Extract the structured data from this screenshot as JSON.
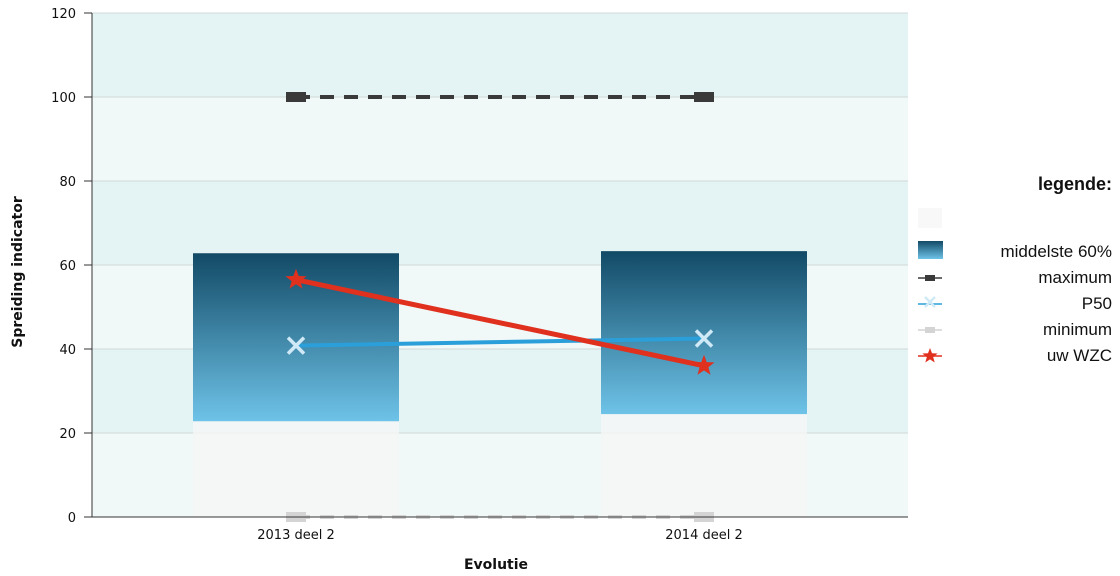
{
  "chart_data": {
    "type": "line",
    "categories": [
      "2013 deel 2",
      "2014 deel 2"
    ],
    "xlabel": "Evolutie",
    "ylabel": "Spreiding indicator",
    "ylim": [
      0,
      120
    ],
    "yticks": [
      0,
      20,
      40,
      60,
      80,
      100,
      120
    ],
    "band_series": {
      "name": "middelste 60%",
      "low": [
        22.8,
        24.5
      ],
      "high": [
        62.8,
        63.3
      ]
    },
    "series": [
      {
        "name": "maximum",
        "values": [
          100,
          100
        ],
        "color": "#3a3a3a",
        "style": "dashed",
        "marker": "square"
      },
      {
        "name": "P50",
        "values": [
          40.8,
          42.5
        ],
        "color": "#2b9fd9",
        "style": "solid",
        "marker": "x"
      },
      {
        "name": "minimum",
        "values": [
          0,
          0
        ],
        "color": "#d4d4d4",
        "style": "dashed",
        "marker": "square"
      },
      {
        "name": "uw WZC",
        "values": [
          56.5,
          36.0
        ],
        "color": "#e0301e",
        "style": "solid",
        "marker": "star"
      }
    ],
    "grid": true,
    "legend": {
      "title": "legende:",
      "placement": "right"
    }
  }
}
